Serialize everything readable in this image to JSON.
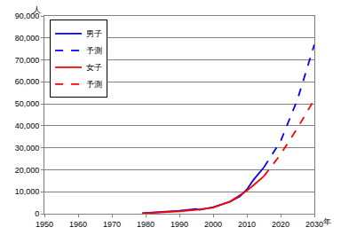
{
  "chart_data": {
    "type": "line",
    "x_label": "年",
    "y_label": "人",
    "xlim": [
      1950,
      2030
    ],
    "xticks": [
      1950,
      1960,
      1970,
      1980,
      1990,
      2000,
      2010,
      2020,
      2030
    ],
    "ylim": [
      0,
      90000
    ],
    "yticks": [
      0,
      {
        "value": 10000,
        "label": "10,000"
      },
      {
        "value": 20000,
        "label": "20,000"
      },
      {
        "value": 30000,
        "label": "30,000"
      },
      {
        "value": 40000,
        "label": "40,000"
      },
      {
        "value": 50000,
        "label": "50,000"
      },
      {
        "value": 60000,
        "label": "60,000"
      },
      {
        "value": 70000,
        "label": "70,000"
      },
      {
        "value": 80000,
        "label": "80,000"
      },
      {
        "value": 90000,
        "label": "90,000"
      }
    ],
    "grid": true,
    "legend": "upper left",
    "series": [
      {
        "name": "男子",
        "color": "#0000ff",
        "line_style": "solid",
        "x": [
          1979,
          1985,
          1990,
          1995,
          1996,
          2000,
          2005,
          2008,
          2010,
          2012,
          2015
        ],
        "values": [
          200,
          800,
          1400,
          2200,
          1800,
          3000,
          5500,
          8000,
          11000,
          15500,
          21000
        ]
      },
      {
        "name": "予測",
        "color": "#0000ff",
        "line_style": "dashed",
        "x": [
          2015,
          2020,
          2025,
          2030
        ],
        "values": [
          21000,
          33000,
          52000,
          77000
        ]
      },
      {
        "name": "女子",
        "color": "#ff0000",
        "line_style": "solid",
        "x": [
          1979,
          1985,
          1990,
          1995,
          2000,
          2005,
          2010,
          2012,
          2015
        ],
        "values": [
          100,
          600,
          1100,
          1800,
          2800,
          5500,
          10500,
          13000,
          17000
        ]
      },
      {
        "name": "予測",
        "color": "#ff0000",
        "line_style": "dashed",
        "x": [
          2015,
          2020,
          2025,
          2030
        ],
        "values": [
          17000,
          27000,
          39000,
          52000
        ]
      }
    ]
  }
}
